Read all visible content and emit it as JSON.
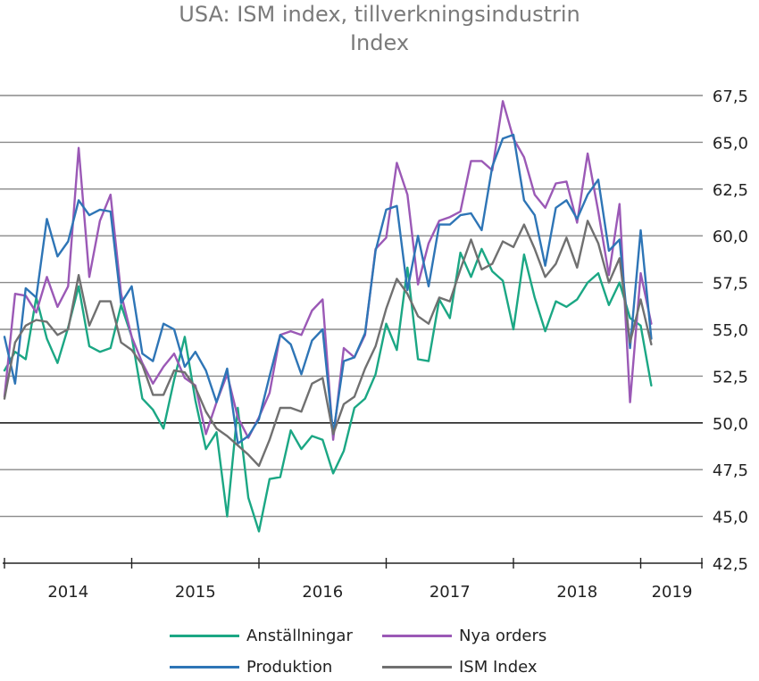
{
  "chart_data": {
    "type": "line",
    "title": "USA: ISM index, tillverkningsindustrin",
    "subtitle": "Index",
    "x_start": "2014-01",
    "x_end": "2019-01",
    "x_tick_labels": [
      "2014",
      "2015",
      "2016",
      "2017",
      "2018",
      "2019"
    ],
    "ylim": [
      42.5,
      67.5
    ],
    "y_ticks": [
      "42,5",
      "45,0",
      "47,5",
      "50,0",
      "52,5",
      "55,0",
      "57,5",
      "60,0",
      "62,5",
      "65,0",
      "67,5"
    ],
    "grid": true,
    "reference_line": 50.0,
    "legend_position": "bottom",
    "series": [
      {
        "name": "Anställningar",
        "color": "#1ba784",
        "values": [
          52.8,
          53.8,
          53.4,
          56.7,
          54.5,
          53.2,
          55.1,
          57.3,
          54.1,
          53.8,
          54.0,
          56.3,
          54.6,
          51.3,
          50.7,
          49.7,
          52.3,
          54.6,
          51.2,
          48.6,
          49.5,
          45.0,
          50.8,
          46.0,
          44.2,
          47.0,
          47.1,
          49.6,
          48.6,
          49.3,
          49.1,
          47.3,
          48.5,
          50.8,
          51.3,
          52.6,
          55.3,
          53.9,
          58.3,
          53.4,
          53.3,
          56.6,
          55.6,
          59.1,
          57.8,
          59.3,
          58.1,
          57.6,
          55.0,
          59.0,
          56.7,
          54.9,
          56.5,
          56.2,
          56.6,
          57.5,
          58.0,
          56.3,
          57.5,
          55.6,
          55.2,
          52.0
        ],
        "x_start": "2014-01"
      },
      {
        "name": "Nya orders",
        "color": "#9b59b6",
        "values": [
          51.4,
          56.9,
          56.8,
          55.9,
          57.8,
          56.2,
          57.3,
          64.7,
          57.8,
          60.8,
          62.2,
          56.9,
          54.6,
          53.2,
          52.1,
          53.0,
          53.7,
          52.4,
          52.0,
          49.4,
          51.1,
          52.6,
          50.3,
          49.2,
          50.3,
          51.6,
          54.7,
          54.9,
          54.7,
          56.0,
          56.6,
          49.1,
          54.0,
          53.5,
          54.7,
          59.3,
          59.9,
          63.9,
          62.2,
          57.4,
          59.6,
          60.8,
          61.0,
          61.3,
          64.0,
          64.0,
          63.5,
          67.2,
          65.2,
          64.2,
          62.2,
          61.5,
          62.8,
          62.9,
          60.7,
          64.4,
          61.3,
          57.9,
          61.7,
          51.1,
          58.0,
          55.3
        ],
        "x_start": "2014-01"
      },
      {
        "name": "Produktion",
        "color": "#2e75b6",
        "values": [
          54.6,
          52.1,
          57.2,
          56.7,
          60.9,
          58.9,
          59.7,
          61.9,
          61.1,
          61.4,
          61.3,
          56.4,
          57.3,
          53.7,
          53.3,
          55.3,
          55.0,
          53.0,
          53.8,
          52.8,
          51.1,
          52.9,
          48.9,
          49.3,
          50.2,
          52.5,
          54.7,
          54.2,
          52.6,
          54.4,
          55.0,
          49.4,
          53.3,
          53.5,
          54.8,
          59.2,
          61.4,
          61.6,
          57.1,
          60.0,
          57.3,
          60.6,
          60.6,
          61.1,
          61.2,
          60.3,
          63.7,
          65.2,
          65.4,
          61.9,
          61.1,
          58.4,
          61.5,
          61.9,
          60.9,
          62.2,
          63.0,
          59.2,
          59.8,
          54.0,
          60.3,
          54.5
        ],
        "x_start": "2014-01"
      },
      {
        "name": "ISM Index",
        "color": "#707070",
        "values": [
          51.3,
          54.3,
          55.2,
          55.5,
          55.4,
          54.7,
          55.0,
          57.9,
          55.2,
          56.5,
          56.5,
          54.3,
          53.9,
          53.1,
          51.5,
          51.5,
          52.8,
          52.7,
          51.9,
          50.6,
          49.7,
          49.3,
          48.8,
          48.3,
          47.7,
          49.1,
          50.8,
          50.8,
          50.6,
          52.1,
          52.4,
          49.4,
          51.0,
          51.4,
          52.9,
          54.1,
          56.1,
          57.7,
          56.9,
          55.7,
          55.3,
          56.7,
          56.5,
          58.2,
          59.8,
          58.2,
          58.5,
          59.7,
          59.4,
          60.6,
          59.3,
          57.8,
          58.5,
          59.9,
          58.3,
          60.8,
          59.6,
          57.5,
          58.8,
          54.3,
          56.6,
          54.2
        ],
        "x_start": "2014-01"
      }
    ]
  }
}
